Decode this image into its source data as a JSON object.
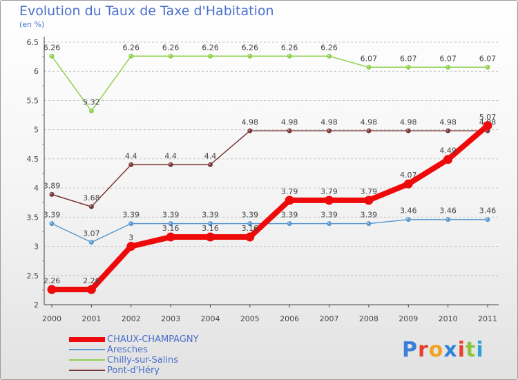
{
  "title": "Evolution du Taux de Taxe d'Habitation",
  "subtitle": "(en %)",
  "logo": {
    "text": "Proxiti",
    "letter_colors": [
      "#3a7fd8",
      "#e8402a",
      "#f2a21f",
      "#2f86d9",
      "#e8402a",
      "#8bc53f",
      "#2f9fd9"
    ]
  },
  "chart_data": {
    "type": "line",
    "x": [
      "2000",
      "2001",
      "2002",
      "2003",
      "2004",
      "2005",
      "2006",
      "2007",
      "2008",
      "2009",
      "2010",
      "2011"
    ],
    "ylim": [
      2,
      6.5
    ],
    "yticks": [
      "2",
      "2.5",
      "3",
      "3.5",
      "4",
      "4.5",
      "5",
      "5.5",
      "6",
      "6.5"
    ],
    "grid": "horizontal dashed",
    "legend_position": "bottom-left",
    "series": [
      {
        "name": "Chilly-sur-Salins",
        "color": "#8fd14f",
        "values": [
          6.26,
          5.32,
          6.26,
          6.26,
          6.26,
          6.26,
          6.26,
          6.26,
          6.07,
          6.07,
          6.07,
          6.07
        ],
        "labels": [
          "6.26",
          "5.32",
          "6.26",
          "6.26",
          "6.26",
          "6.26",
          "6.26",
          "6.26",
          "6.07",
          "6.07",
          "6.07",
          "6.07"
        ]
      },
      {
        "name": "Pont-d'Héry",
        "color": "#7a3636",
        "values": [
          3.89,
          3.68,
          4.4,
          4.4,
          4.4,
          4.98,
          4.98,
          4.98,
          4.98,
          4.98,
          4.98,
          4.98
        ],
        "labels": [
          "3.89",
          "3.68",
          "4.4",
          "4.4",
          "4.4",
          "4.98",
          "4.98",
          "4.98",
          "4.98",
          "4.98",
          "4.98",
          "4.98"
        ]
      },
      {
        "name": "Aresches",
        "color": "#5b9ad0",
        "values": [
          3.39,
          3.07,
          3.39,
          3.39,
          3.39,
          3.39,
          3.39,
          3.39,
          3.39,
          3.46,
          3.46,
          3.46
        ],
        "labels": [
          "3.39",
          "3.07",
          "3.39",
          "3.39",
          "3.39",
          "3.39",
          "3.39",
          "3.39",
          "3.39",
          "3.46",
          "3.46",
          "3.46"
        ]
      },
      {
        "name": "CHAUX-CHAMPAGNY",
        "color": "#ee0a0a",
        "values": [
          2.26,
          2.26,
          3,
          3.16,
          3.16,
          3.16,
          3.79,
          3.79,
          3.79,
          4.07,
          4.49,
          5.07
        ],
        "labels": [
          "2.26",
          "2.26",
          "3",
          "3.16",
          "3.16",
          "3.16",
          "3.79",
          "3.79",
          "3.79",
          "4.07",
          "4.49",
          "5.07"
        ]
      }
    ],
    "legend_order": [
      "CHAUX-CHAMPAGNY",
      "Aresches",
      "Chilly-sur-Salins",
      "Pont-d'Héry"
    ]
  }
}
